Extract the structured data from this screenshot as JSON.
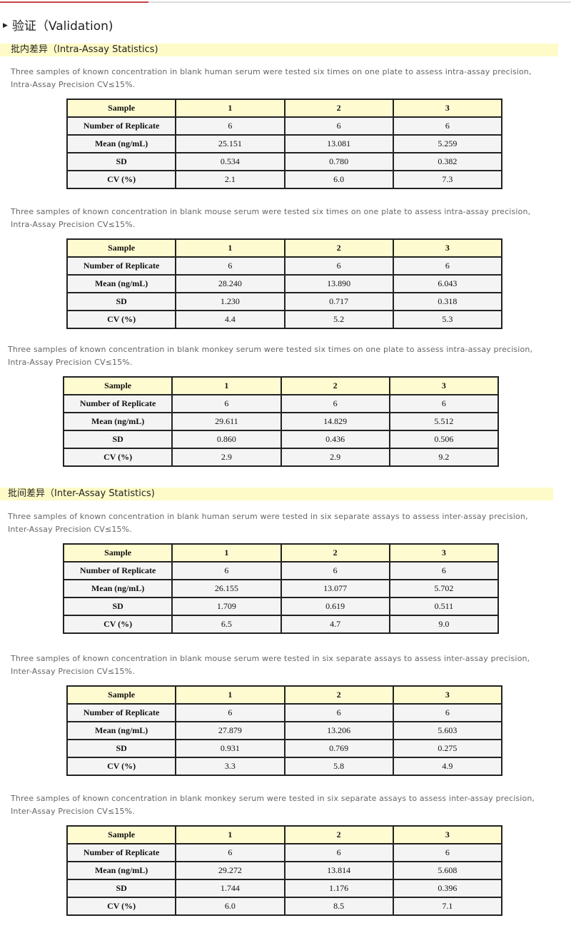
{
  "title": "验证（Validation)",
  "sections": [
    {
      "heading": "批内差异（Intra-Assay Statistics)",
      "blocks": [
        {
          "text": "Three samples of known concentration in blank human serum were tested six times on one plate to assess intra-assay precision, Intra-Assay Precision CV≤15%.",
          "rows": [
            [
              "Sample",
              "1",
              "2",
              "3"
            ],
            [
              "Number of Replicate",
              "6",
              "6",
              "6"
            ],
            [
              "Mean (ng/mL)",
              "25.151",
              "13.081",
              "5.259"
            ],
            [
              "SD",
              "0.534",
              "0.780",
              "0.382"
            ],
            [
              "CV (%)",
              "2.1",
              "6.0",
              "7.3"
            ]
          ]
        },
        {
          "text": "Three samples of known concentration in blank mouse serum were tested six times on one plate to assess intra-assay precision, Intra-Assay Precision CV≤15%.",
          "rows": [
            [
              "Sample",
              "1",
              "2",
              "3"
            ],
            [
              "Number of Replicate",
              "6",
              "6",
              "6"
            ],
            [
              "Mean (ng/mL)",
              "28.240",
              "13.890",
              "6.043"
            ],
            [
              "SD",
              "1.230",
              "0.717",
              "0.318"
            ],
            [
              "CV (%)",
              "4.4",
              "5.2",
              "5.3"
            ]
          ]
        },
        {
          "text": "Three samples of known concentration in blank monkey serum were tested six times on one plate to assess intra-assay precision, Intra-Assay Precision CV≤15%.",
          "rows": [
            [
              "Sample",
              "1",
              "2",
              "3"
            ],
            [
              "Number of Replicate",
              "6",
              "6",
              "6"
            ],
            [
              "Mean (ng/mL)",
              "29.611",
              "14.829",
              "5.512"
            ],
            [
              "SD",
              "0.860",
              "0.436",
              "0.506"
            ],
            [
              "CV (%)",
              "2.9",
              "2.9",
              "9.2"
            ]
          ]
        }
      ]
    },
    {
      "heading": "批间差异（Inter-Assay Statistics)",
      "blocks": [
        {
          "text": "Three samples of known concentration in blank human serum were tested in six separate assays to assess inter-assay precision, Inter-Assay Precision CV≤15%.",
          "rows": [
            [
              "Sample",
              "1",
              "2",
              "3"
            ],
            [
              "Number of Replicate",
              "6",
              "6",
              "6"
            ],
            [
              "Mean (ng/mL)",
              "26.155",
              "13.077",
              "5.702"
            ],
            [
              "SD",
              "1.709",
              "0.619",
              "0.511"
            ],
            [
              "CV (%)",
              "6.5",
              "4.7",
              "9.0"
            ]
          ]
        },
        {
          "text": "Three samples of known concentration in blank mouse serum were tested in six separate assays to assess inter-assay precision, Inter-Assay Precision CV≤15%.",
          "rows": [
            [
              "Sample",
              "1",
              "2",
              "3"
            ],
            [
              "Number of Replicate",
              "6",
              "6",
              "6"
            ],
            [
              "Mean (ng/mL)",
              "27.879",
              "13.206",
              "5.603"
            ],
            [
              "SD",
              "0.931",
              "0.769",
              "0.275"
            ],
            [
              "CV (%)",
              "3.3",
              "5.8",
              "4.9"
            ]
          ]
        },
        {
          "text": "Three samples of known concentration in blank monkey serum were tested in six separate assays to assess inter-assay precision, Inter-Assay Precision CV≤15%.",
          "rows": [
            [
              "Sample",
              "1",
              "2",
              "3"
            ],
            [
              "Number of Replicate",
              "6",
              "6",
              "6"
            ],
            [
              "Mean (ng/mL)",
              "29.272",
              "13.814",
              "5.608"
            ],
            [
              "SD",
              "1.744",
              "1.176",
              "0.396"
            ],
            [
              "CV (%)",
              "6.0",
              "8.5",
              "7.1"
            ]
          ]
        }
      ]
    }
  ]
}
